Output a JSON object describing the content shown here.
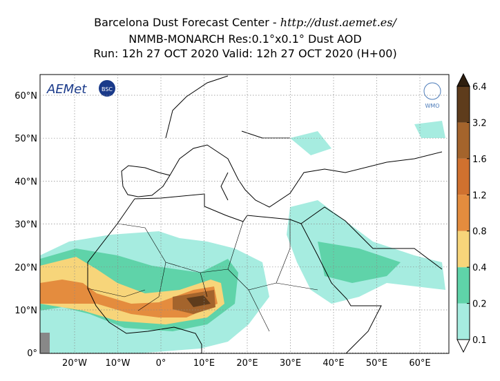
{
  "header": {
    "center": "Barcelona Dust Forecast Center - ",
    "url": "http://dust.aemet.es/",
    "model": "NMMB-MONARCH   Res:0.1°x0.1°   Dust AOD",
    "run": "Run: 12h 27 OCT 2020   Valid: 12h 27 OCT 2020 (H+00)"
  },
  "logos": {
    "aemet": "AEMet",
    "bsc": "BSC",
    "wmo": "WMO"
  },
  "map": {
    "lat_labels": [
      "60°N",
      "50°N",
      "40°N",
      "30°N",
      "20°N",
      "10°N",
      "0°"
    ],
    "lon_labels": [
      "20°W",
      "10°W",
      "0°",
      "10°E",
      "20°E",
      "30°E",
      "40°E",
      "50°E",
      "60°E"
    ]
  },
  "colorbar": {
    "ticks": [
      0.1,
      0.2,
      0.4,
      0.8,
      1.2,
      1.6,
      3.2,
      6.4
    ],
    "colors": [
      "#a6ece0",
      "#5fd3a9",
      "#f7d57a",
      "#e48c3e",
      "#d0712f",
      "#a4642c",
      "#5e3c1c"
    ],
    "over_color": "#2e1e0e"
  }
}
